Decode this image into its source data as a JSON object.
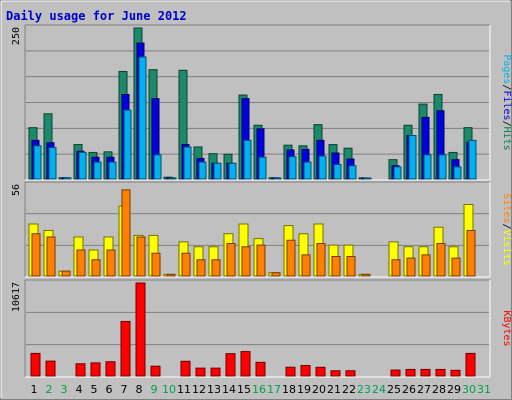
{
  "chart_data": {
    "type": "bar",
    "title": "Daily usage for June 2012",
    "categories": [
      "1",
      "2",
      "3",
      "4",
      "5",
      "6",
      "7",
      "8",
      "9",
      "10",
      "11",
      "12",
      "13",
      "14",
      "15",
      "16",
      "17",
      "18",
      "19",
      "20",
      "21",
      "22",
      "23",
      "24",
      "25",
      "26",
      "27",
      "28",
      "29",
      "30",
      "31"
    ],
    "weekend_days": [
      "2",
      "3",
      "9",
      "10",
      "16",
      "17",
      "23",
      "24",
      "30",
      "31"
    ],
    "grid": true,
    "panels": [
      {
        "name": "requests",
        "ymax_label": "250",
        "ymax": 250,
        "axis_label_parts": [
          "Pages",
          "/",
          "Files",
          "/",
          "Hits"
        ],
        "axis_label_colors": [
          "#00b0f0",
          "#000000",
          "#0000e0",
          "#000000",
          "#00805a"
        ],
        "series": [
          {
            "name": "Hits",
            "color": "#1a8a6a",
            "values": [
              85,
              108,
              2,
              57,
              44,
              45,
              178,
              250,
              181,
              3,
              180,
              53,
              42,
              41,
              139,
              89,
              2,
              56,
              55,
              90,
              57,
              51,
              2,
              0,
              32,
              89,
              124,
              140,
              44,
              85
            ]
          },
          {
            "name": "Files",
            "color": "#0000e0",
            "values": [
              64,
              60,
              2,
              46,
              36,
              36,
              140,
              225,
              133,
              2,
              57,
              34,
              26,
              26,
              133,
              83,
              2,
              48,
              49,
              64,
              43,
              33,
              1,
              0,
              22,
              72,
              102,
              113,
              32,
              61
            ]
          },
          {
            "name": "Pages",
            "color": "#00b0f0",
            "values": [
              55,
              52,
              2,
              44,
              28,
              28,
              114,
              202,
              40,
              1,
              53,
              28,
              26,
              26,
              64,
              36,
              1,
              37,
              28,
              38,
              24,
              22,
              1,
              0,
              20,
              72,
              40,
              40,
              20,
              64
            ]
          }
        ]
      },
      {
        "name": "visitors",
        "ymax_label": "56",
        "ymax": 56,
        "axis_label_parts": [
          "Sites",
          "/",
          "Visits"
        ],
        "axis_label_colors": [
          "#ff8000",
          "#000000",
          "#ffff00"
        ],
        "series": [
          {
            "name": "Visits",
            "color": "#ffff00",
            "values": [
              32,
              28,
              3,
              24,
              16,
              24,
              43,
              25,
              25,
              1,
              21,
              18,
              18,
              26,
              32,
              23,
              2,
              31,
              26,
              32,
              19,
              19,
              1,
              0,
              21,
              18,
              18,
              30,
              18,
              44
            ]
          },
          {
            "name": "Sites",
            "color": "#ff8000",
            "values": [
              26,
              24,
              3,
              16,
              10,
              16,
              53,
              24,
              14,
              1,
              14,
              10,
              10,
              20,
              18,
              19,
              2,
              22,
              13,
              20,
              12,
              12,
              1,
              0,
              10,
              11,
              13,
              20,
              11,
              28
            ]
          }
        ]
      },
      {
        "name": "traffic",
        "ymax_label": "10617",
        "ymax": 10617,
        "axis_label_parts": [
          "KBytes"
        ],
        "axis_label_colors": [
          "#ff0000"
        ],
        "series": [
          {
            "name": "KBytes",
            "color": "#ff0000",
            "values": [
              2580,
              1700,
              0,
              1400,
              1500,
              1630,
              6230,
              10617,
              1120,
              0,
              1680,
              900,
              900,
              2550,
              2790,
              1560,
              0,
              1000,
              1200,
              990,
              600,
              600,
              0,
              0,
              680,
              750,
              750,
              750,
              650,
              2580
            ]
          }
        ]
      }
    ]
  }
}
